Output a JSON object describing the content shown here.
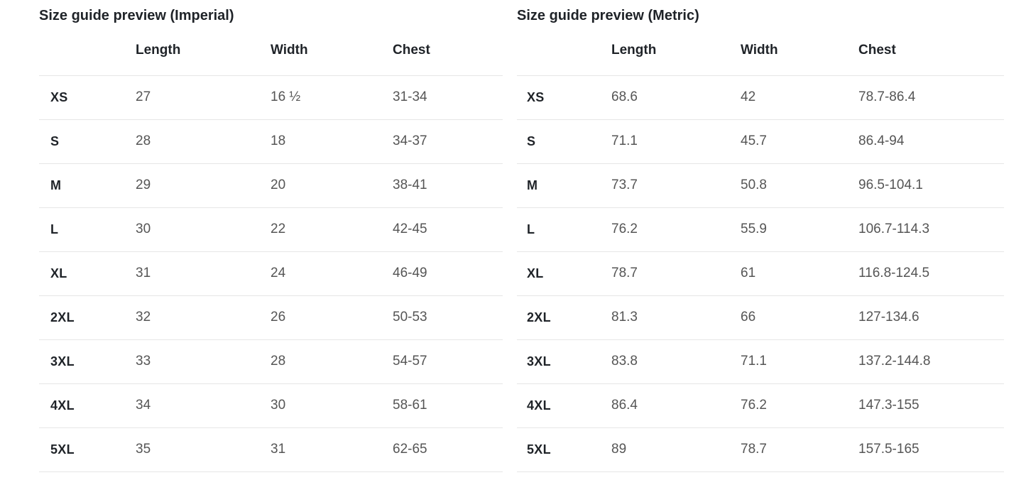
{
  "imperial": {
    "title": "Size guide preview (Imperial)",
    "columns": {
      "length": "Length",
      "width": "Width",
      "chest": "Chest"
    },
    "rows": [
      {
        "size": "XS",
        "length": "27",
        "width": "16 ½",
        "chest": "31-34"
      },
      {
        "size": "S",
        "length": "28",
        "width": "18",
        "chest": "34-37"
      },
      {
        "size": "M",
        "length": "29",
        "width": "20",
        "chest": "38-41"
      },
      {
        "size": "L",
        "length": "30",
        "width": "22",
        "chest": "42-45"
      },
      {
        "size": "XL",
        "length": "31",
        "width": "24",
        "chest": "46-49"
      },
      {
        "size": "2XL",
        "length": "32",
        "width": "26",
        "chest": "50-53"
      },
      {
        "size": "3XL",
        "length": "33",
        "width": "28",
        "chest": "54-57"
      },
      {
        "size": "4XL",
        "length": "34",
        "width": "30",
        "chest": "58-61"
      },
      {
        "size": "5XL",
        "length": "35",
        "width": "31",
        "chest": "62-65"
      }
    ]
  },
  "metric": {
    "title": "Size guide preview (Metric)",
    "columns": {
      "length": "Length",
      "width": "Width",
      "chest": "Chest"
    },
    "rows": [
      {
        "size": "XS",
        "length": "68.6",
        "width": "42",
        "chest": "78.7-86.4"
      },
      {
        "size": "S",
        "length": "71.1",
        "width": "45.7",
        "chest": "86.4-94"
      },
      {
        "size": "M",
        "length": "73.7",
        "width": "50.8",
        "chest": "96.5-104.1"
      },
      {
        "size": "L",
        "length": "76.2",
        "width": "55.9",
        "chest": "106.7-114.3"
      },
      {
        "size": "XL",
        "length": "78.7",
        "width": "61",
        "chest": "116.8-124.5"
      },
      {
        "size": "2XL",
        "length": "81.3",
        "width": "66",
        "chest": "127-134.6"
      },
      {
        "size": "3XL",
        "length": "83.8",
        "width": "71.1",
        "chest": "137.2-144.8"
      },
      {
        "size": "4XL",
        "length": "86.4",
        "width": "76.2",
        "chest": "147.3-155"
      },
      {
        "size": "5XL",
        "length": "89",
        "width": "78.7",
        "chest": "157.5-165"
      }
    ]
  },
  "colors": {
    "background": "#ffffff",
    "heading_text": "#1f2328",
    "value_text": "#555555",
    "divider": "#e6e6e6"
  }
}
